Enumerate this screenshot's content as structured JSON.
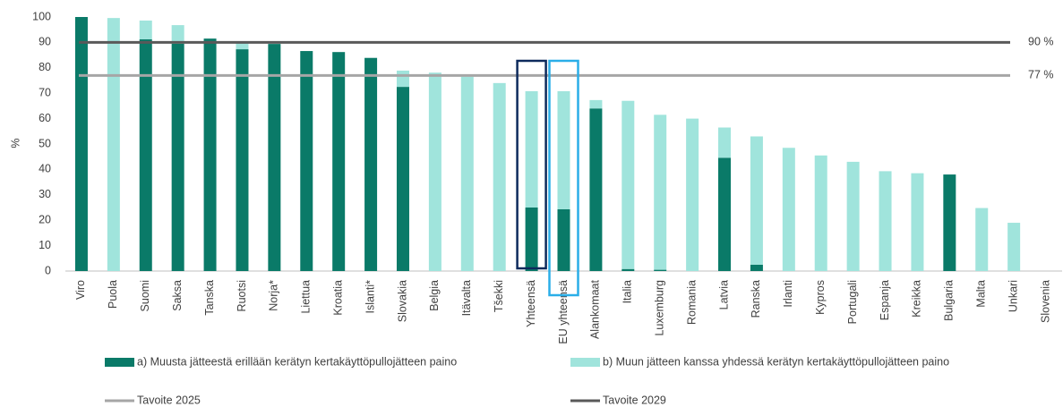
{
  "chart_data": {
    "type": "stacked_bar",
    "ylabel": "%",
    "categories": [
      "Viro",
      "Puola",
      "Suomi",
      "Saksa",
      "Tanska",
      "Ruotsi",
      "Norja*",
      "Liettua",
      "Kroatia",
      "Islanti*",
      "Slovakia",
      "Belgia",
      "Itävalta",
      "Tšekki",
      "Yhteensä",
      "EU yhteensä",
      "Alankomaat",
      "Italia",
      "Luxemburg",
      "Romania",
      "Latvia",
      "Ranska",
      "Irlanti",
      "Kypros",
      "Portugali",
      "Espanja",
      "Kreikka",
      "Bulgaria",
      "Malta",
      "Unkari",
      "Slovenia"
    ],
    "series": [
      {
        "name": "a) Muusta jätteestä erillään kerätyn kertakäyttöpullojätteen paino",
        "color": "#0a7a68",
        "values": [
          100,
          0,
          91.2,
          89.5,
          91.5,
          87.3,
          89.4,
          86.6,
          86.2,
          83.9,
          72.5,
          0,
          0,
          0,
          25,
          24.3,
          64,
          0.8,
          0.5,
          0,
          44.6,
          2.5,
          0,
          0,
          0,
          0,
          0,
          38,
          0,
          0,
          null
        ]
      },
      {
        "name": "b) Muun jätteen kanssa yhdessä kerätyn kertakäyttöpullojätteen paino",
        "color": "#a0e4dc",
        "values": [
          0,
          99.6,
          7.4,
          7.3,
          0,
          2.5,
          0,
          0,
          0,
          0,
          6.4,
          78.1,
          76.5,
          74,
          45.8,
          46.5,
          3.3,
          66.2,
          61,
          60,
          11.9,
          50.5,
          48.5,
          45.5,
          43,
          39.3,
          38.5,
          0,
          24.8,
          19,
          null
        ]
      }
    ],
    "reference_lines": [
      {
        "name": "Tavoite 2025",
        "value": 77,
        "value_label": "77 %",
        "color": "#a6a6a6"
      },
      {
        "name": "Tavoite 2029",
        "value": 90,
        "value_label": "90 %",
        "color": "#595959"
      }
    ],
    "highlights": [
      {
        "category": "Yhteensä",
        "color": "#0d2a5c"
      },
      {
        "category": "EU yhteensä",
        "color": "#2aaee8"
      }
    ],
    "ylim": [
      0,
      100
    ],
    "yticks": [
      0,
      10,
      20,
      30,
      40,
      50,
      60,
      70,
      80,
      90,
      100
    ]
  }
}
